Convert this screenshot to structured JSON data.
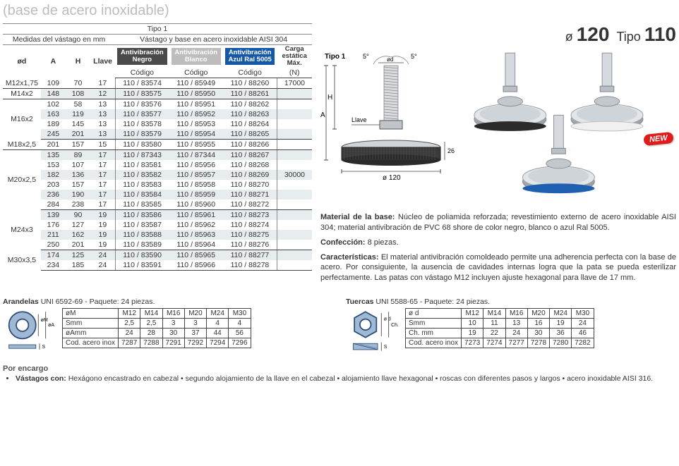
{
  "faded_title": "(base de acero inoxidable)",
  "product_header": {
    "diam_label": "ø",
    "diam_value": "120",
    "tipo_label": "Tipo",
    "tipo_value": "110"
  },
  "main_table": {
    "title": "Tipo 1",
    "measures_header": "Medidas del vástago en mm",
    "aisi_header": "Vástago y base en acero inoxidable AISI 304",
    "cols": {
      "od": "ød",
      "A": "A",
      "H": "H",
      "llave": "Llave",
      "carga": "Carga estática Máx.",
      "carga_unit": "(N)"
    },
    "pill_black": "Antivibración Negro",
    "pill_white": "Antivibración Blanco",
    "pill_blue": "Antivibración Azul Ral 5005",
    "codigo_label": "Código",
    "groups": [
      {
        "od": "M12x1,75",
        "carga": "17000",
        "rows": [
          {
            "A": "109",
            "H": "70",
            "ll": "17",
            "c1": "110 / 83574",
            "c2": "110 / 85949",
            "c3": "110 / 88260"
          }
        ]
      },
      {
        "od": "M14x2",
        "rows": [
          {
            "A": "148",
            "H": "108",
            "ll": "12",
            "c1": "110 / 83575",
            "c2": "110 / 85950",
            "c3": "110 / 88261"
          }
        ]
      },
      {
        "od": "M16x2",
        "rows": [
          {
            "A": "102",
            "H": "58",
            "ll": "13",
            "c1": "110 / 83576",
            "c2": "110 / 85951",
            "c3": "110 / 88262"
          },
          {
            "A": "163",
            "H": "119",
            "ll": "13",
            "c1": "110 / 83577",
            "c2": "110 / 85952",
            "c3": "110 / 88263"
          },
          {
            "A": "189",
            "H": "145",
            "ll": "13",
            "c1": "110 / 83578",
            "c2": "110 / 85953",
            "c3": "110 / 88264"
          },
          {
            "A": "245",
            "H": "201",
            "ll": "13",
            "c1": "110 / 83579",
            "c2": "110 / 85954",
            "c3": "110 / 88265"
          }
        ]
      },
      {
        "od": "M18x2,5",
        "rows": [
          {
            "A": "201",
            "H": "157",
            "ll": "15",
            "c1": "110 / 83580",
            "c2": "110 / 85955",
            "c3": "110 / 88266"
          }
        ]
      },
      {
        "od": "M20x2,5",
        "carga": "30000",
        "rows": [
          {
            "A": "135",
            "H": "89",
            "ll": "17",
            "c1": "110 / 87343",
            "c2": "110 / 87344",
            "c3": "110 / 88267"
          },
          {
            "A": "153",
            "H": "107",
            "ll": "17",
            "c1": "110 / 83581",
            "c2": "110 / 85956",
            "c3": "110 / 88268"
          },
          {
            "A": "182",
            "H": "136",
            "ll": "17",
            "c1": "110 / 83582",
            "c2": "110 / 85957",
            "c3": "110 / 88269"
          },
          {
            "A": "203",
            "H": "157",
            "ll": "17",
            "c1": "110 / 83583",
            "c2": "110 / 85958",
            "c3": "110 / 88270"
          },
          {
            "A": "236",
            "H": "190",
            "ll": "17",
            "c1": "110 / 83584",
            "c2": "110 / 85959",
            "c3": "110 / 88271"
          },
          {
            "A": "284",
            "H": "238",
            "ll": "17",
            "c1": "110 / 83585",
            "c2": "110 / 85960",
            "c3": "110 / 88272"
          }
        ]
      },
      {
        "od": "M24x3",
        "rows": [
          {
            "A": "139",
            "H": "90",
            "ll": "19",
            "c1": "110 / 83586",
            "c2": "110 / 85961",
            "c3": "110 / 88273"
          },
          {
            "A": "176",
            "H": "127",
            "ll": "19",
            "c1": "110 / 83587",
            "c2": "110 / 85962",
            "c3": "110 / 88274"
          },
          {
            "A": "211",
            "H": "162",
            "ll": "19",
            "c1": "110 / 83588",
            "c2": "110 / 85963",
            "c3": "110 / 88275"
          },
          {
            "A": "250",
            "H": "201",
            "ll": "19",
            "c1": "110 / 83589",
            "c2": "110 / 85964",
            "c3": "110 / 88276"
          }
        ]
      },
      {
        "od": "M30x3,5",
        "rows": [
          {
            "A": "174",
            "H": "125",
            "ll": "24",
            "c1": "110 / 83590",
            "c2": "110 / 85965",
            "c3": "110 / 88277"
          },
          {
            "A": "234",
            "H": "185",
            "ll": "24",
            "c1": "110 / 83591",
            "c2": "110 / 85966",
            "c3": "110 / 88278"
          }
        ]
      }
    ]
  },
  "diagram": {
    "tipo_label": "Tipo 1",
    "angle_left": "5°",
    "angle_right": "5°",
    "od_label": "ød",
    "A_label": "A",
    "H_label": "H",
    "llave_label": "Llave",
    "base_dim": "ø 120",
    "side_dim": "26"
  },
  "photos": {
    "new_label": "NEW",
    "colors": {
      "black": "#2b2b2b",
      "white": "#f0f0f0",
      "blue": "#1f5fb0",
      "steel": "#c9cdd1",
      "steel_dark": "#9aa0a6"
    }
  },
  "desc": {
    "material_label": "Material de la base:",
    "material_text": " Núcleo de poliamida reforzada; revestimiento externo de acero inoxidable AISI 304; material antivibración de PVC 68 shore de color negro, blanco o azul Ral 5005.",
    "conf_label": "Confección:",
    "conf_text": " 8 piezas.",
    "carac_label": "Características:",
    "carac_text": " El material antivibración comoldeado permite una adherencia perfecta con la base de acero. Por consiguiente, la ausencia de cavidades internas logra que la pata se pueda esterilizar perfectamente. Las patas con vástago M12 incluyen ajuste hexagonal para llave de 17 mm."
  },
  "arandelas": {
    "title_bold": "Arandelas",
    "title_rest": " UNI 6592-69 - Paquete: 24 piezas.",
    "rows": [
      {
        "label": "øM",
        "v": [
          "M12",
          "M14",
          "M16",
          "M20",
          "M24",
          "M30"
        ]
      },
      {
        "label": "Smm",
        "v": [
          "2,5",
          "2,5",
          "3",
          "3",
          "4",
          "4"
        ]
      },
      {
        "label": "øAmm",
        "v": [
          "24",
          "28",
          "30",
          "37",
          "44",
          "56"
        ]
      },
      {
        "label": "Cod. acero inox",
        "v": [
          "7287",
          "7288",
          "7291",
          "7292",
          "7294",
          "7296"
        ]
      }
    ],
    "diagram_labels": {
      "oM": "øM",
      "oA": "øA",
      "S": "S"
    }
  },
  "tuercas": {
    "title_bold": "Tuercas",
    "title_rest": " UNI 5588-65 - Paquete: 24 piezas.",
    "rows": [
      {
        "label": "ø d",
        "v": [
          "M12",
          "M14",
          "M16",
          "M20",
          "M24",
          "M30"
        ]
      },
      {
        "label": "Smm",
        "v": [
          "10",
          "11",
          "13",
          "16",
          "19",
          "24"
        ]
      },
      {
        "label": "Ch. mm",
        "v": [
          "19",
          "22",
          "24",
          "30",
          "36",
          "46"
        ]
      },
      {
        "label": "Cod. acero inox",
        "v": [
          "7273",
          "7274",
          "7277",
          "7278",
          "7280",
          "7282"
        ]
      }
    ],
    "diagram_labels": {
      "od": "ø d",
      "Ch": "Ch.",
      "S": "S"
    }
  },
  "footer": {
    "por_encargo": "Por encargo",
    "bullet_label": "Vástagos con:",
    "bullet_text": " Hexágono encastrado en cabezal • segundo alojamiento de la llave en el cabezal • alojamiento llave hexagonal • roscas con diferentes pasos y largos • acero inoxidable AISI 316."
  }
}
